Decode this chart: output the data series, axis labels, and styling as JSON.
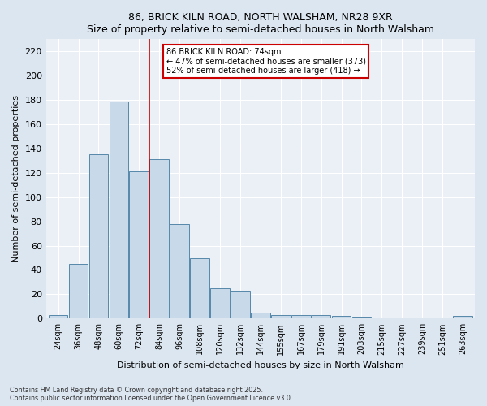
{
  "title1": "86, BRICK KILN ROAD, NORTH WALSHAM, NR28 9XR",
  "title2": "Size of property relative to semi-detached houses in North Walsham",
  "xlabel": "Distribution of semi-detached houses by size in North Walsham",
  "ylabel": "Number of semi-detached properties",
  "categories": [
    "24sqm",
    "36sqm",
    "48sqm",
    "60sqm",
    "72sqm",
    "84sqm",
    "96sqm",
    "108sqm",
    "120sqm",
    "132sqm",
    "144sqm",
    "155sqm",
    "167sqm",
    "179sqm",
    "191sqm",
    "203sqm",
    "215sqm",
    "227sqm",
    "239sqm",
    "251sqm",
    "263sqm"
  ],
  "values": [
    3,
    45,
    135,
    179,
    121,
    131,
    78,
    50,
    25,
    23,
    5,
    3,
    3,
    3,
    2,
    1,
    0,
    0,
    0,
    0,
    2
  ],
  "bar_color": "#c8d9ea",
  "bar_edge_color": "#5588aa",
  "vline_x": 4.5,
  "annotation_line1": "86 BRICK KILN ROAD: 74sqm",
  "annotation_line2": "← 47% of semi-detached houses are smaller (373)",
  "annotation_line3": "52% of semi-detached houses are larger (418) →",
  "annotation_box_color": "#ffffff",
  "annotation_box_edge": "#cc0000",
  "vline_color": "#cc0000",
  "ylim": [
    0,
    230
  ],
  "yticks": [
    0,
    20,
    40,
    60,
    80,
    100,
    120,
    140,
    160,
    180,
    200,
    220
  ],
  "footnote1": "Contains HM Land Registry data © Crown copyright and database right 2025.",
  "footnote2": "Contains public sector information licensed under the Open Government Licence v3.0.",
  "bg_color": "#dce6f0",
  "plot_bg_color": "#eaf0f6",
  "grid_color": "#ffffff"
}
